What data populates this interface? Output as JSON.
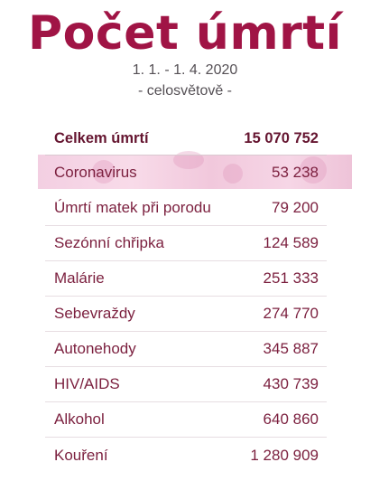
{
  "title": "Počet úmrtí",
  "date_range": "1. 1. - 1. 4. 2020",
  "scope": "- celosvětově -",
  "table": {
    "header": {
      "label": "Celkem úmrtí",
      "value": "15 070 752"
    },
    "rows": [
      {
        "label": "Coronavirus",
        "value": "53 238"
      },
      {
        "label": "Úmrtí matek při porodu",
        "value": "79 200"
      },
      {
        "label": "Sezónní chřipka",
        "value": "124 589"
      },
      {
        "label": "Malárie",
        "value": "251 333"
      },
      {
        "label": "Sebevraždy",
        "value": "274 770"
      },
      {
        "label": "Autonehody",
        "value": "345 887"
      },
      {
        "label": "HIV/AIDS",
        "value": "430 739"
      },
      {
        "label": "Alkohol",
        "value": "640 860"
      },
      {
        "label": "Kouření",
        "value": "1 280 909"
      }
    ]
  },
  "colors": {
    "title": "#a01445",
    "text": "#7b1f3e",
    "highlight": "#f3cfe2"
  }
}
